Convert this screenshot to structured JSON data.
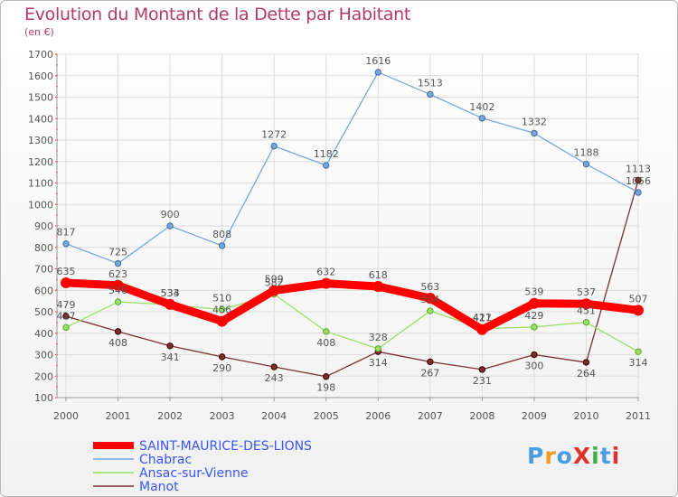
{
  "title": "Evolution du Montant de la Dette par Habitant",
  "subtitle": "(en €)",
  "logo": "ProXiti",
  "chart_data": {
    "type": "line",
    "x": [
      "2000",
      "2001",
      "2002",
      "2003",
      "2004",
      "2005",
      "2006",
      "2007",
      "2008",
      "2009",
      "2010",
      "2011"
    ],
    "ylim": [
      100,
      1700
    ],
    "yticks": [
      100,
      200,
      300,
      400,
      500,
      600,
      700,
      800,
      900,
      1000,
      1100,
      1200,
      1300,
      1400,
      1500,
      1600,
      1700
    ],
    "grid": true,
    "legend_position": "bottom-left",
    "series": [
      {
        "name": "SAINT-MAURICE-DES-LIONS",
        "color": "#ff0000",
        "values": [
          635,
          623,
          534,
          456,
          599,
          632,
          618,
          563,
          417,
          539,
          537,
          507
        ]
      },
      {
        "name": "Chabrac",
        "color": "#7aa7d9",
        "values": [
          817,
          725,
          900,
          808,
          1272,
          1182,
          1616,
          1513,
          1402,
          1332,
          1188,
          1056
        ]
      },
      {
        "name": "Ansac-sur-Vienne",
        "color": "#99e066",
        "values": [
          427,
          546,
          533,
          510,
          582,
          408,
          328,
          504,
          421,
          429,
          451,
          314
        ]
      },
      {
        "name": "Manot",
        "color": "#7a2f2f",
        "values": [
          479,
          408,
          341,
          290,
          243,
          198,
          314,
          267,
          231,
          300,
          264,
          1113
        ]
      }
    ]
  }
}
